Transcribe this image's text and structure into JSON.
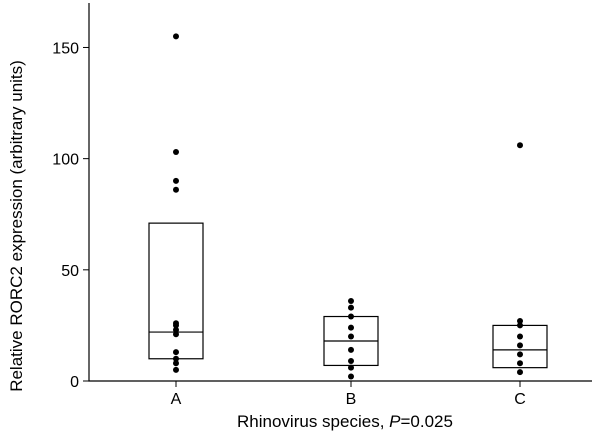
{
  "chart_data": {
    "type": "box",
    "ylabel": "Relative RORC2 expression (arbitrary units)",
    "xlabel": {
      "prefix": "Rhinovirus species, ",
      "italic": "P",
      "suffix": "=0.025"
    },
    "ylim": [
      0,
      170
    ],
    "yticks": [
      0,
      50,
      100,
      150
    ],
    "categories": [
      "A",
      "B",
      "C"
    ],
    "boxes": [
      {
        "category": "A",
        "q1": 10,
        "median": 22,
        "q3": 71,
        "points": [
          155,
          103,
          90,
          86,
          26,
          25,
          23,
          21,
          13,
          10,
          8,
          5
        ]
      },
      {
        "category": "B",
        "q1": 7,
        "median": 18,
        "q3": 29,
        "points": [
          36,
          33,
          29,
          24,
          20,
          14,
          9,
          6,
          2
        ]
      },
      {
        "category": "C",
        "q1": 6,
        "median": 14,
        "q3": 25,
        "points": [
          106,
          27,
          25,
          20,
          16,
          12,
          8,
          4
        ]
      }
    ],
    "grid": false,
    "legend": "none"
  }
}
